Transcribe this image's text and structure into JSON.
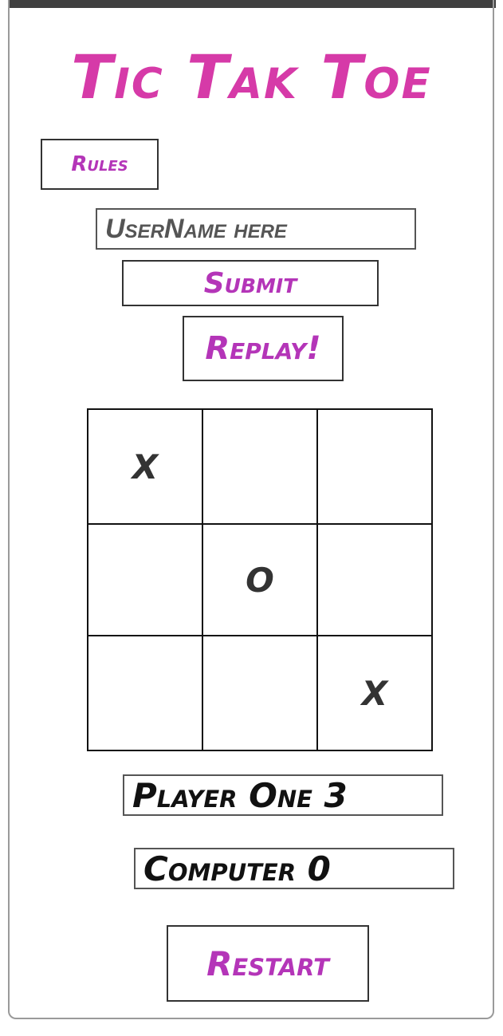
{
  "app": {
    "title": "Tic Tak Toe"
  },
  "buttons": {
    "rules": "Rules",
    "submit": "Submit",
    "replay": "Replay!",
    "restart": "Restart"
  },
  "username_input": {
    "placeholder": "UserName here",
    "value": ""
  },
  "board": {
    "cells": [
      "X",
      "",
      "",
      "",
      "O",
      "",
      "",
      "",
      "X"
    ]
  },
  "scores": {
    "player": "Player One 3",
    "computer": "Computer 0"
  },
  "colors": {
    "accent": "#d63aa8",
    "button_text": "#b435b8",
    "mark": "#333333"
  }
}
